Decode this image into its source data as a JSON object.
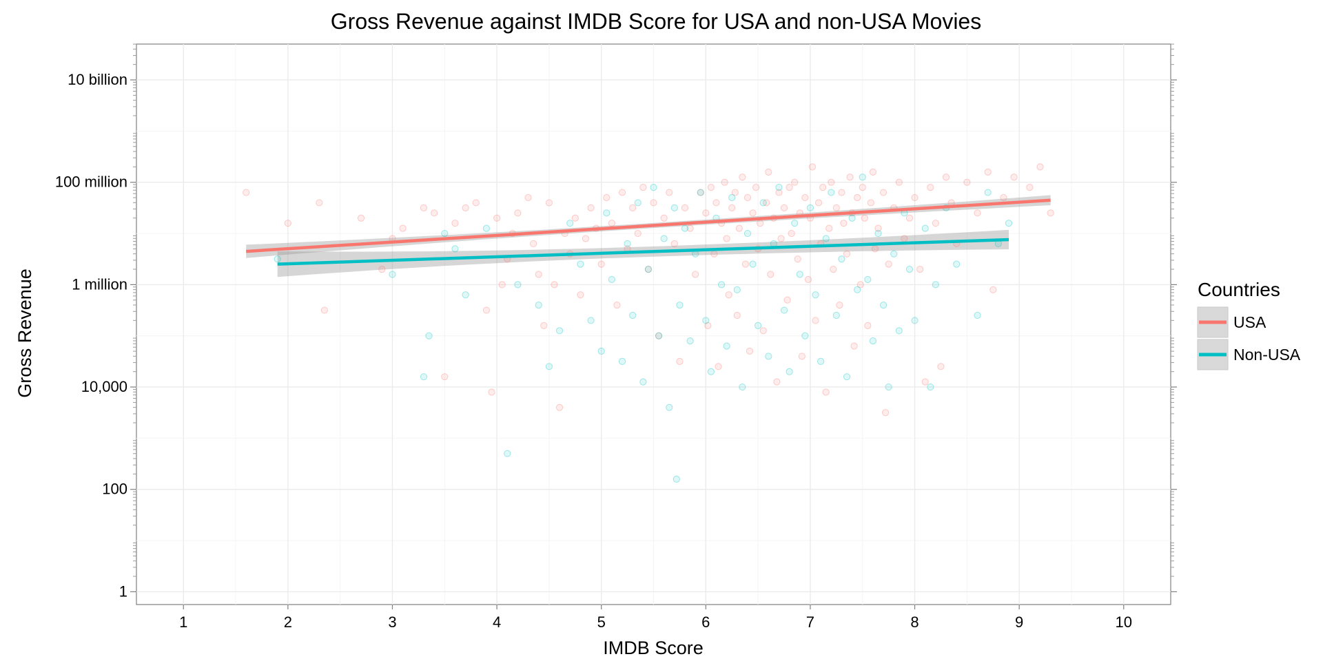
{
  "chart_data": {
    "type": "scatter",
    "title": "Gross Revenue against IMDB Score for USA and non-USA Movies",
    "xlabel": "IMDB Score",
    "ylabel": "Gross Revenue",
    "x_scale": "linear",
    "y_scale": "log10",
    "xlim": [
      0.55,
      10.45
    ],
    "ylim_log10": [
      -0.25,
      10.7
    ],
    "x_ticks": [
      1,
      2,
      3,
      4,
      5,
      6,
      7,
      8,
      9,
      10
    ],
    "x_tick_labels": [
      "1",
      "2",
      "3",
      "4",
      "5",
      "6",
      "7",
      "8",
      "9",
      "10"
    ],
    "y_ticks": [
      1,
      100,
      10000,
      1000000,
      100000000,
      10000000000
    ],
    "y_tick_labels": [
      "1",
      "100",
      "10,000",
      "1 million",
      "100 million",
      "10 billion"
    ],
    "grid": true,
    "legend": {
      "title": "Countries",
      "position": "right",
      "entries": [
        "USA",
        "Non-USA"
      ]
    },
    "colors": {
      "USA": "#F8766D",
      "Non-USA": "#00BFC4",
      "ribbon": "#999999"
    },
    "series": [
      {
        "name": "USA",
        "color": "#F8766D",
        "trend": {
          "x": [
            1.6,
            9.3
          ],
          "y_log10": [
            6.65,
            7.65
          ],
          "ci_halfwidth_log10": [
            0.13,
            0.05
          ]
        },
        "points": [
          [
            1.6,
            7.8
          ],
          [
            2.0,
            7.2
          ],
          [
            2.3,
            7.6
          ],
          [
            2.35,
            5.5
          ],
          [
            2.7,
            7.3
          ],
          [
            2.9,
            6.3
          ],
          [
            3.0,
            6.9
          ],
          [
            3.1,
            7.1
          ],
          [
            3.3,
            7.5
          ],
          [
            3.4,
            7.4
          ],
          [
            3.5,
            4.2
          ],
          [
            3.6,
            7.2
          ],
          [
            3.7,
            7.5
          ],
          [
            3.8,
            7.6
          ],
          [
            3.9,
            5.5
          ],
          [
            3.95,
            3.9
          ],
          [
            4.0,
            7.3
          ],
          [
            4.05,
            6.0
          ],
          [
            4.1,
            6.5
          ],
          [
            4.15,
            7.0
          ],
          [
            4.2,
            7.4
          ],
          [
            4.3,
            7.7
          ],
          [
            4.35,
            6.8
          ],
          [
            4.4,
            6.2
          ],
          [
            4.45,
            5.2
          ],
          [
            4.5,
            7.6
          ],
          [
            4.55,
            6.0
          ],
          [
            4.6,
            3.6
          ],
          [
            4.65,
            7.0
          ],
          [
            4.7,
            6.6
          ],
          [
            4.75,
            7.3
          ],
          [
            4.8,
            5.8
          ],
          [
            4.85,
            6.9
          ],
          [
            4.9,
            7.5
          ],
          [
            4.95,
            7.1
          ],
          [
            5.0,
            6.4
          ],
          [
            5.05,
            7.7
          ],
          [
            5.1,
            7.2
          ],
          [
            5.15,
            5.6
          ],
          [
            5.2,
            7.8
          ],
          [
            5.25,
            6.7
          ],
          [
            5.3,
            7.5
          ],
          [
            5.35,
            7.0
          ],
          [
            5.4,
            7.9
          ],
          [
            5.45,
            6.3
          ],
          [
            5.5,
            7.6
          ],
          [
            5.55,
            5.0
          ],
          [
            5.6,
            7.3
          ],
          [
            5.65,
            7.8
          ],
          [
            5.7,
            6.8
          ],
          [
            5.75,
            4.5
          ],
          [
            5.8,
            7.5
          ],
          [
            5.85,
            7.1
          ],
          [
            5.9,
            6.2
          ],
          [
            5.95,
            7.8
          ],
          [
            6.0,
            7.4
          ],
          [
            6.02,
            5.2
          ],
          [
            6.05,
            7.9
          ],
          [
            6.08,
            6.6
          ],
          [
            6.1,
            7.6
          ],
          [
            6.12,
            4.4
          ],
          [
            6.15,
            7.2
          ],
          [
            6.18,
            8.0
          ],
          [
            6.2,
            6.9
          ],
          [
            6.22,
            5.8
          ],
          [
            6.25,
            7.5
          ],
          [
            6.28,
            7.8
          ],
          [
            6.3,
            5.4
          ],
          [
            6.32,
            7.1
          ],
          [
            6.35,
            8.1
          ],
          [
            6.38,
            6.4
          ],
          [
            6.4,
            7.7
          ],
          [
            6.42,
            4.7
          ],
          [
            6.45,
            7.4
          ],
          [
            6.48,
            7.9
          ],
          [
            6.5,
            6.7
          ],
          [
            6.52,
            7.2
          ],
          [
            6.55,
            5.1
          ],
          [
            6.58,
            7.6
          ],
          [
            6.6,
            8.2
          ],
          [
            6.62,
            6.2
          ],
          [
            6.65,
            7.3
          ],
          [
            6.68,
            4.1
          ],
          [
            6.7,
            7.8
          ],
          [
            6.72,
            6.9
          ],
          [
            6.75,
            7.5
          ],
          [
            6.78,
            5.7
          ],
          [
            6.8,
            7.9
          ],
          [
            6.82,
            7.0
          ],
          [
            6.85,
            8.0
          ],
          [
            6.88,
            6.5
          ],
          [
            6.9,
            7.4
          ],
          [
            6.92,
            4.6
          ],
          [
            6.95,
            7.7
          ],
          [
            6.98,
            6.1
          ],
          [
            7.0,
            7.3
          ],
          [
            7.02,
            8.3
          ],
          [
            7.05,
            5.3
          ],
          [
            7.08,
            7.6
          ],
          [
            7.1,
            6.8
          ],
          [
            7.12,
            7.9
          ],
          [
            7.15,
            3.9
          ],
          [
            7.18,
            7.1
          ],
          [
            7.2,
            8.0
          ],
          [
            7.22,
            6.3
          ],
          [
            7.25,
            7.5
          ],
          [
            7.28,
            5.6
          ],
          [
            7.3,
            7.8
          ],
          [
            7.32,
            7.2
          ],
          [
            7.35,
            6.6
          ],
          [
            7.38,
            8.1
          ],
          [
            7.4,
            7.4
          ],
          [
            7.42,
            4.8
          ],
          [
            7.45,
            7.7
          ],
          [
            7.48,
            6.0
          ],
          [
            7.5,
            7.9
          ],
          [
            7.52,
            7.3
          ],
          [
            7.55,
            5.2
          ],
          [
            7.58,
            7.6
          ],
          [
            7.6,
            8.2
          ],
          [
            7.62,
            6.7
          ],
          [
            7.65,
            7.1
          ],
          [
            7.7,
            7.8
          ],
          [
            7.72,
            3.5
          ],
          [
            7.75,
            6.4
          ],
          [
            7.8,
            7.5
          ],
          [
            7.85,
            8.0
          ],
          [
            7.9,
            6.9
          ],
          [
            7.95,
            7.3
          ],
          [
            8.0,
            7.7
          ],
          [
            8.05,
            6.3
          ],
          [
            8.1,
            4.1
          ],
          [
            8.15,
            7.9
          ],
          [
            8.2,
            7.2
          ],
          [
            8.25,
            4.4
          ],
          [
            8.3,
            8.1
          ],
          [
            8.35,
            7.6
          ],
          [
            8.4,
            6.8
          ],
          [
            8.5,
            8.0
          ],
          [
            8.6,
            7.4
          ],
          [
            8.7,
            8.2
          ],
          [
            8.75,
            5.9
          ],
          [
            8.85,
            7.7
          ],
          [
            8.95,
            8.1
          ],
          [
            9.1,
            7.9
          ],
          [
            9.2,
            8.3
          ],
          [
            9.3,
            7.4
          ]
        ]
      },
      {
        "name": "Non-USA",
        "color": "#00BFC4",
        "trend": {
          "x": [
            1.9,
            8.9
          ],
          "y_log10": [
            6.4,
            6.88
          ],
          "ci_halfwidth_log10": [
            0.25,
            0.1
          ]
        },
        "points": [
          [
            1.9,
            6.5
          ],
          [
            3.0,
            6.2
          ],
          [
            3.3,
            4.2
          ],
          [
            3.35,
            5.0
          ],
          [
            3.5,
            7.0
          ],
          [
            3.6,
            6.7
          ],
          [
            3.7,
            5.8
          ],
          [
            3.9,
            7.1
          ],
          [
            4.1,
            2.7
          ],
          [
            4.2,
            6.0
          ],
          [
            4.4,
            5.6
          ],
          [
            4.5,
            4.4
          ],
          [
            4.6,
            5.1
          ],
          [
            4.7,
            7.2
          ],
          [
            4.8,
            6.4
          ],
          [
            4.9,
            5.3
          ],
          [
            5.0,
            4.7
          ],
          [
            5.05,
            7.4
          ],
          [
            5.1,
            6.1
          ],
          [
            5.2,
            4.5
          ],
          [
            5.25,
            6.8
          ],
          [
            5.3,
            5.4
          ],
          [
            5.35,
            7.6
          ],
          [
            5.4,
            4.1
          ],
          [
            5.45,
            6.3
          ],
          [
            5.5,
            7.9
          ],
          [
            5.55,
            5.0
          ],
          [
            5.6,
            6.9
          ],
          [
            5.65,
            3.6
          ],
          [
            5.7,
            7.5
          ],
          [
            5.72,
            2.2
          ],
          [
            5.75,
            5.6
          ],
          [
            5.8,
            7.1
          ],
          [
            5.85,
            4.9
          ],
          [
            5.9,
            6.6
          ],
          [
            5.95,
            7.8
          ],
          [
            6.0,
            5.3
          ],
          [
            6.05,
            4.3
          ],
          [
            6.1,
            7.3
          ],
          [
            6.15,
            6.0
          ],
          [
            6.2,
            4.8
          ],
          [
            6.25,
            7.7
          ],
          [
            6.3,
            5.9
          ],
          [
            6.35,
            4.0
          ],
          [
            6.4,
            7.0
          ],
          [
            6.45,
            6.4
          ],
          [
            6.5,
            5.2
          ],
          [
            6.55,
            7.6
          ],
          [
            6.6,
            4.6
          ],
          [
            6.65,
            6.8
          ],
          [
            6.7,
            7.9
          ],
          [
            6.75,
            5.5
          ],
          [
            6.8,
            4.3
          ],
          [
            6.85,
            7.2
          ],
          [
            6.9,
            6.2
          ],
          [
            6.95,
            5.0
          ],
          [
            7.0,
            7.5
          ],
          [
            7.05,
            5.8
          ],
          [
            7.1,
            4.5
          ],
          [
            7.15,
            6.9
          ],
          [
            7.2,
            7.8
          ],
          [
            7.25,
            5.4
          ],
          [
            7.3,
            6.5
          ],
          [
            7.35,
            4.2
          ],
          [
            7.4,
            7.3
          ],
          [
            7.45,
            5.9
          ],
          [
            7.5,
            8.1
          ],
          [
            7.55,
            6.1
          ],
          [
            7.6,
            4.9
          ],
          [
            7.65,
            7.0
          ],
          [
            7.7,
            5.6
          ],
          [
            7.75,
            4.0
          ],
          [
            7.8,
            6.6
          ],
          [
            7.85,
            5.1
          ],
          [
            7.9,
            7.4
          ],
          [
            7.95,
            6.3
          ],
          [
            8.0,
            5.3
          ],
          [
            8.1,
            7.1
          ],
          [
            8.15,
            4.0
          ],
          [
            8.2,
            6.0
          ],
          [
            8.3,
            7.5
          ],
          [
            8.4,
            6.4
          ],
          [
            8.6,
            5.4
          ],
          [
            8.7,
            7.8
          ],
          [
            8.8,
            6.8
          ],
          [
            8.9,
            7.2
          ]
        ]
      }
    ]
  }
}
